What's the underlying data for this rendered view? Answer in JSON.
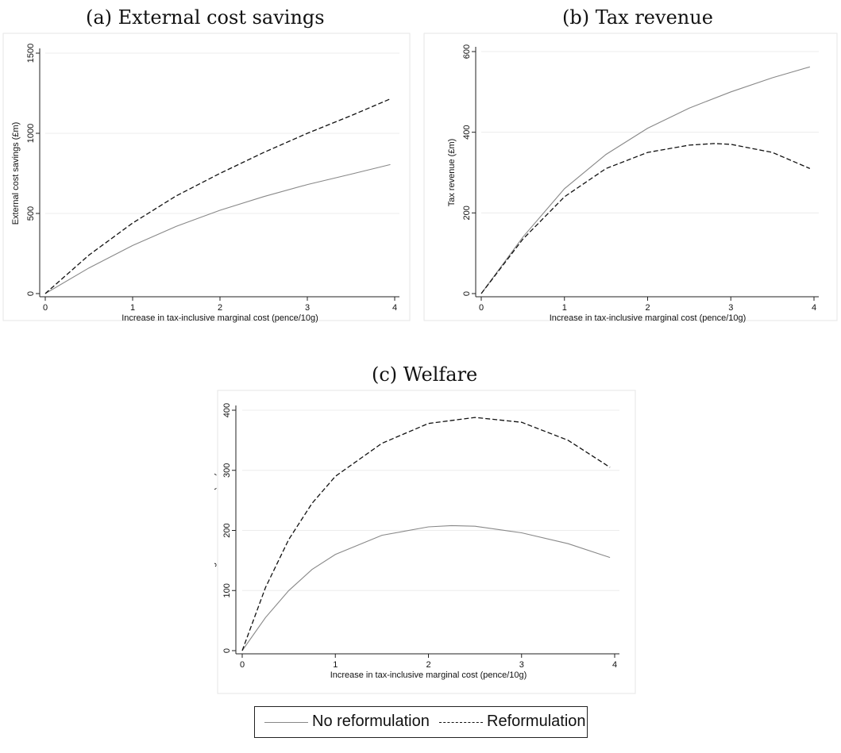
{
  "panels": [
    {
      "title": "(a) External cost savings"
    },
    {
      "title": "(b) Tax revenue"
    },
    {
      "title": "(c) Welfare"
    }
  ],
  "legend": {
    "entries": [
      {
        "label": "No reformulation",
        "style": "solid",
        "color": "#888888"
      },
      {
        "label": "Reformulation",
        "style": "dashed",
        "color": "#111111"
      }
    ]
  },
  "chart_data": [
    {
      "type": "line",
      "title": "",
      "xlabel": "Increase in tax-inclusive marginal cost (pence/10g)",
      "ylabel": "External cost savings (£m)",
      "xlim": [
        0,
        4
      ],
      "ylim": [
        0,
        1500
      ],
      "xticks": [
        0,
        1,
        2,
        3,
        4
      ],
      "yticks": [
        0,
        500,
        1000,
        1500
      ],
      "grid": true,
      "series": [
        {
          "name": "No reformulation",
          "style": "solid",
          "color": "#888888",
          "x": [
            0,
            0.5,
            1,
            1.5,
            2,
            2.5,
            3,
            3.5,
            3.95
          ],
          "y": [
            0,
            160,
            300,
            420,
            520,
            605,
            680,
            745,
            805
          ]
        },
        {
          "name": "Reformulation",
          "style": "dashed",
          "color": "#111111",
          "x": [
            0,
            0.5,
            1,
            1.5,
            2,
            2.5,
            3,
            3.5,
            3.95
          ],
          "y": [
            0,
            240,
            440,
            610,
            750,
            880,
            1000,
            1110,
            1215
          ]
        }
      ]
    },
    {
      "type": "line",
      "title": "",
      "xlabel": "Increase in tax-inclusive marginal cost (pence/10g)",
      "ylabel": "Tax revenue (£m)",
      "xlim": [
        0,
        4
      ],
      "ylim": [
        0,
        600
      ],
      "xticks": [
        0,
        1,
        2,
        3,
        4
      ],
      "yticks": [
        0,
        200,
        400,
        600
      ],
      "grid": true,
      "series": [
        {
          "name": "No reformulation",
          "style": "solid",
          "color": "#888888",
          "x": [
            0,
            0.5,
            1,
            1.5,
            2,
            2.5,
            3,
            3.5,
            3.95
          ],
          "y": [
            0,
            140,
            260,
            345,
            410,
            460,
            500,
            535,
            562
          ]
        },
        {
          "name": "Reformulation",
          "style": "dashed",
          "color": "#111111",
          "x": [
            0,
            0.5,
            1,
            1.5,
            2,
            2.5,
            2.8,
            3,
            3.5,
            3.95
          ],
          "y": [
            0,
            135,
            240,
            310,
            350,
            368,
            372,
            370,
            350,
            310
          ]
        }
      ]
    },
    {
      "type": "line",
      "title": "",
      "xlabel": "Increase in tax-inclusive marginal cost (pence/10g)",
      "ylabel": "Change in social welfare (£m)",
      "xlim": [
        0,
        4
      ],
      "ylim": [
        0,
        400
      ],
      "xticks": [
        0,
        1,
        2,
        3,
        4
      ],
      "yticks": [
        0,
        100,
        200,
        300,
        400
      ],
      "grid": true,
      "series": [
        {
          "name": "No reformulation",
          "style": "solid",
          "color": "#888888",
          "x": [
            0,
            0.25,
            0.5,
            0.75,
            1,
            1.5,
            2,
            2.25,
            2.5,
            3,
            3.5,
            3.95
          ],
          "y": [
            0,
            55,
            100,
            135,
            160,
            192,
            206,
            208,
            207,
            196,
            178,
            155
          ]
        },
        {
          "name": "Reformulation",
          "style": "dashed",
          "color": "#111111",
          "x": [
            0,
            0.25,
            0.5,
            0.75,
            1,
            1.5,
            2,
            2.5,
            3,
            3.5,
            3.95
          ],
          "y": [
            0,
            105,
            185,
            245,
            290,
            345,
            378,
            388,
            380,
            350,
            305
          ]
        }
      ]
    }
  ]
}
